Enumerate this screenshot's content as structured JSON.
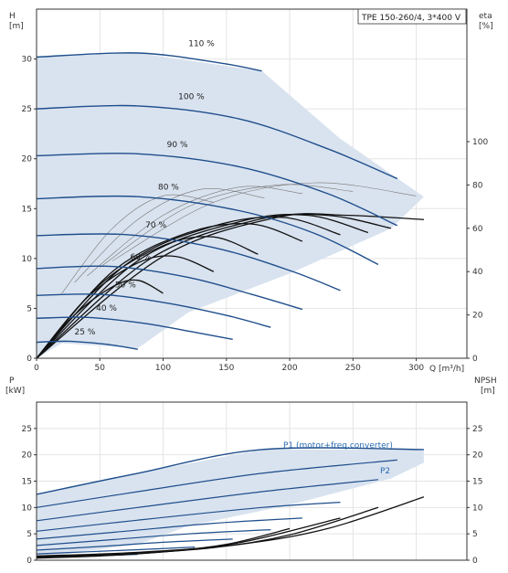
{
  "chart_data": [
    {
      "type": "line",
      "title": "TPE 150-260/4, 3*400 V",
      "ylabel": "H",
      "ylabel_unit": "[m]",
      "y2label": "eta",
      "y2label_unit": "[%]",
      "xlabel": "Q [m³/h]",
      "xlim": [
        0,
        340
      ],
      "ylim": [
        0,
        35
      ],
      "y2lim": [
        0,
        100
      ],
      "x_ticks": [
        "0",
        "50",
        "100",
        "150",
        "200",
        "250",
        "300"
      ],
      "y_ticks": [
        "0",
        "5",
        "10",
        "15",
        "20",
        "25",
        "30"
      ],
      "y2_ticks": [
        "0",
        "20",
        "40",
        "60",
        "80",
        "100"
      ],
      "grid": true,
      "speed_curves": [
        {
          "label": "110 %",
          "x": [
            0,
            80,
            145,
            178
          ],
          "y": [
            30.2,
            30.6,
            29.6,
            28.8
          ]
        },
        {
          "label": "100 %",
          "x": [
            0,
            80,
            160,
            230,
            285
          ],
          "y": [
            25.0,
            25.3,
            24.0,
            21.0,
            18.0
          ]
        },
        {
          "label": "90 %",
          "x": [
            0,
            80,
            160,
            230,
            285
          ],
          "y": [
            20.3,
            20.5,
            19.2,
            16.5,
            13.3
          ]
        },
        {
          "label": "80 %",
          "x": [
            0,
            80,
            160,
            220,
            270
          ],
          "y": [
            16.0,
            16.2,
            14.8,
            12.5,
            9.4
          ]
        },
        {
          "label": "70 %",
          "x": [
            0,
            70,
            140,
            200,
            240
          ],
          "y": [
            12.3,
            12.4,
            11.1,
            8.8,
            6.8
          ]
        },
        {
          "label": "60 %",
          "x": [
            0,
            60,
            120,
            170,
            210
          ],
          "y": [
            9.0,
            9.2,
            8.1,
            6.4,
            4.9
          ]
        },
        {
          "label": "50 %",
          "x": [
            0,
            50,
            100,
            150,
            185
          ],
          "y": [
            6.3,
            6.4,
            5.6,
            4.3,
            3.1
          ]
        },
        {
          "label": "40 %",
          "x": [
            0,
            40,
            85,
            125,
            155
          ],
          "y": [
            4.0,
            4.1,
            3.5,
            2.6,
            1.9
          ]
        },
        {
          "label": "25 %",
          "x": [
            0,
            25,
            55,
            80
          ],
          "y": [
            1.6,
            1.7,
            1.4,
            0.9
          ]
        }
      ],
      "envelope": {
        "x": [
          0,
          80,
          178,
          240,
          306,
          280,
          200,
          120,
          80,
          20,
          0
        ],
        "y": [
          30.2,
          30.6,
          28.8,
          22.0,
          16.2,
          13.0,
          8.5,
          4.6,
          1.0,
          1.5,
          0
        ]
      },
      "eta_curves": [
        {
          "x": [
            0,
            30,
            60,
            80,
            100
          ],
          "y": [
            0,
            20,
            33,
            36,
            30
          ]
        },
        {
          "x": [
            0,
            40,
            80,
            110,
            140
          ],
          "y": [
            0,
            28,
            44,
            47,
            40
          ]
        },
        {
          "x": [
            0,
            50,
            100,
            140,
            175
          ],
          "y": [
            0,
            34,
            52,
            56,
            48
          ]
        },
        {
          "x": [
            0,
            60,
            120,
            170,
            210
          ],
          "y": [
            0,
            40,
            58,
            62,
            54
          ]
        },
        {
          "x": [
            0,
            70,
            140,
            195,
            240
          ],
          "y": [
            0,
            43,
            61,
            65,
            57
          ]
        },
        {
          "x": [
            0,
            80,
            160,
            215,
            262
          ],
          "y": [
            0,
            45,
            63,
            66,
            58
          ]
        },
        {
          "x": [
            0,
            90,
            175,
            230,
            280
          ],
          "y": [
            0,
            46,
            64,
            66,
            60
          ]
        },
        {
          "x": [
            0,
            100,
            190,
            245,
            306
          ],
          "y": [
            0,
            47,
            65,
            66,
            64
          ]
        }
      ],
      "eta_thin_curves": [
        {
          "x": [
            20,
            60,
            100,
            140
          ],
          "y": [
            30,
            60,
            75,
            72
          ]
        },
        {
          "x": [
            30,
            80,
            130,
            180
          ],
          "y": [
            35,
            64,
            78,
            74
          ]
        },
        {
          "x": [
            40,
            100,
            160,
            210
          ],
          "y": [
            38,
            66,
            79,
            76
          ]
        },
        {
          "x": [
            50,
            120,
            190,
            250
          ],
          "y": [
            42,
            70,
            80,
            77
          ]
        },
        {
          "x": [
            60,
            140,
            220,
            300
          ],
          "y": [
            45,
            72,
            81,
            75
          ]
        }
      ]
    },
    {
      "type": "line",
      "ylabel": "P",
      "ylabel_unit": "[kW]",
      "y2label": "NPSH",
      "y2label_unit": "[m]",
      "xlim": [
        0,
        340
      ],
      "ylim": [
        0,
        30
      ],
      "y_ticks": [
        "0",
        "5",
        "10",
        "15",
        "20",
        "25"
      ],
      "y2_ticks": [
        "0",
        "5",
        "10",
        "15",
        "20",
        "25"
      ],
      "grid": true,
      "series_labels": [
        "P1 (motor+freq.converter)",
        "P2"
      ],
      "power_curves": [
        {
          "x": [
            0,
            80,
            178,
            306
          ],
          "y": [
            12.5,
            16.5,
            21.0,
            21.0
          ]
        },
        {
          "x": [
            0,
            80,
            178,
            285
          ],
          "y": [
            10.0,
            13.0,
            16.5,
            19.0
          ]
        },
        {
          "x": [
            0,
            80,
            178,
            270
          ],
          "y": [
            7.5,
            10.0,
            13.0,
            15.3
          ]
        },
        {
          "x": [
            0,
            80,
            178,
            240
          ],
          "y": [
            5.5,
            7.6,
            10.0,
            11.0
          ]
        },
        {
          "x": [
            0,
            70,
            140,
            210
          ],
          "y": [
            4.0,
            5.5,
            7.0,
            8.0
          ]
        },
        {
          "x": [
            0,
            60,
            120,
            185
          ],
          "y": [
            2.8,
            3.9,
            5.0,
            5.8
          ]
        },
        {
          "x": [
            0,
            50,
            100,
            155
          ],
          "y": [
            1.9,
            2.6,
            3.4,
            4.0
          ]
        },
        {
          "x": [
            0,
            40,
            80,
            125
          ],
          "y": [
            1.2,
            1.6,
            2.0,
            2.5
          ]
        },
        {
          "x": [
            0,
            25,
            55,
            80
          ],
          "y": [
            0.5,
            0.7,
            0.9,
            1.1
          ]
        }
      ],
      "power_envelope": {
        "x": [
          0,
          80,
          178,
          306,
          306,
          280,
          200,
          120,
          80,
          0
        ],
        "y": [
          12.5,
          16.5,
          21.0,
          21.0,
          18.5,
          15.5,
          10.5,
          6.5,
          3.0,
          0.5
        ]
      },
      "npsh_curves": [
        {
          "x": [
            0,
            80,
            160,
            230,
            306
          ],
          "y": [
            0.8,
            1.5,
            3.0,
            6.0,
            12.0
          ]
        },
        {
          "x": [
            0,
            70,
            140,
            200,
            270
          ],
          "y": [
            0.6,
            1.2,
            2.4,
            4.8,
            10.0
          ]
        },
        {
          "x": [
            0,
            60,
            120,
            170,
            240
          ],
          "y": [
            0.5,
            1.0,
            2.0,
            3.8,
            8.0
          ]
        },
        {
          "x": [
            0,
            50,
            100,
            150,
            200
          ],
          "y": [
            0.4,
            0.8,
            1.6,
            3.0,
            6.0
          ]
        }
      ]
    }
  ]
}
